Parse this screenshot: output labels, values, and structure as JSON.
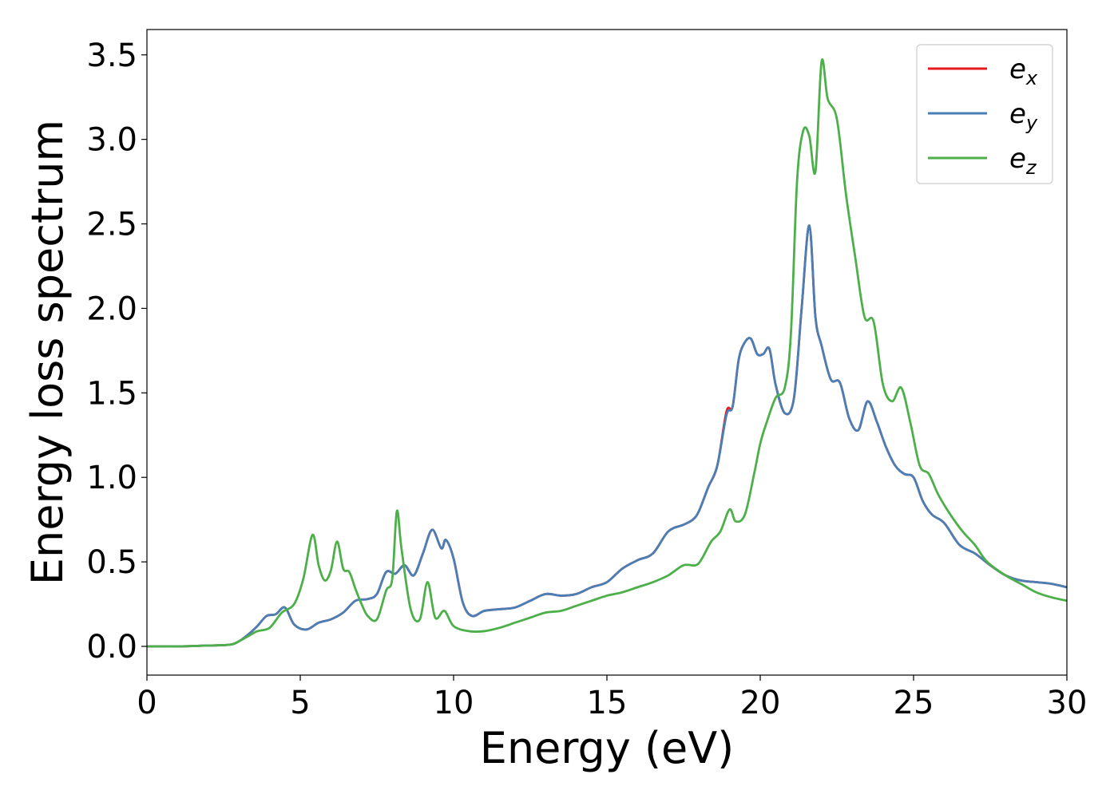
{
  "chart_data": {
    "type": "line",
    "title": "",
    "xlabel": "Energy (eV)",
    "ylabel": "Energy loss spectrum",
    "xlim": [
      0,
      30
    ],
    "ylim": [
      -0.17,
      3.65
    ],
    "xticks": [
      0,
      5,
      10,
      15,
      20,
      25,
      30
    ],
    "xtick_labels": [
      "0",
      "5",
      "10",
      "15",
      "20",
      "25",
      "30"
    ],
    "yticks": [
      0.0,
      0.5,
      1.0,
      1.5,
      2.0,
      2.5,
      3.0,
      3.5
    ],
    "ytick_labels": [
      "0.0",
      "0.5",
      "1.0",
      "1.5",
      "2.0",
      "2.5",
      "3.0",
      "3.5"
    ],
    "grid": false,
    "legend_position": "top-right",
    "series": [
      {
        "name": "e_x",
        "label_base": "e",
        "label_sub": "x",
        "color": "#e41a1c",
        "x": [
          0,
          1,
          2,
          2.7,
          3.0,
          3.3,
          3.6,
          3.9,
          4.2,
          4.5,
          4.8,
          5.2,
          5.6,
          6.0,
          6.4,
          6.8,
          7.2,
          7.5,
          7.8,
          8.1,
          8.4,
          8.7,
          9.0,
          9.3,
          9.6,
          9.75,
          10.0,
          10.3,
          10.6,
          11.0,
          11.5,
          12.0,
          12.5,
          13.0,
          13.5,
          14.0,
          14.5,
          15.0,
          15.5,
          16.0,
          16.5,
          17.0,
          17.5,
          17.8,
          18.0,
          18.3,
          18.6,
          18.9,
          19.1,
          19.3,
          19.5,
          19.7,
          19.9,
          20.1,
          20.3,
          20.5,
          20.8,
          21.1,
          21.35,
          21.6,
          21.8,
          22.0,
          22.3,
          22.6,
          22.9,
          23.2,
          23.5,
          23.8,
          24.1,
          24.4,
          24.7,
          25.0,
          25.3,
          25.6,
          26.0,
          26.5,
          27.0,
          27.5,
          28.0,
          28.5,
          29.0,
          29.5,
          30.0
        ],
        "y": [
          0.0,
          0.0,
          0.005,
          0.01,
          0.03,
          0.07,
          0.12,
          0.18,
          0.19,
          0.23,
          0.13,
          0.1,
          0.14,
          0.16,
          0.2,
          0.27,
          0.28,
          0.31,
          0.44,
          0.43,
          0.48,
          0.42,
          0.55,
          0.69,
          0.58,
          0.63,
          0.52,
          0.26,
          0.18,
          0.21,
          0.22,
          0.23,
          0.27,
          0.31,
          0.3,
          0.31,
          0.35,
          0.38,
          0.46,
          0.51,
          0.55,
          0.68,
          0.72,
          0.75,
          0.8,
          0.94,
          1.07,
          1.39,
          1.42,
          1.7,
          1.8,
          1.82,
          1.73,
          1.73,
          1.76,
          1.55,
          1.38,
          1.47,
          2.0,
          2.49,
          1.95,
          1.78,
          1.58,
          1.56,
          1.35,
          1.28,
          1.45,
          1.33,
          1.18,
          1.07,
          1.02,
          1.0,
          0.86,
          0.78,
          0.73,
          0.6,
          0.55,
          0.48,
          0.42,
          0.39,
          0.38,
          0.37,
          0.35
        ]
      },
      {
        "name": "e_y",
        "label_base": "e",
        "label_sub": "y",
        "color": "#4a7fb5",
        "x": [
          0,
          1,
          2,
          2.7,
          3.0,
          3.3,
          3.6,
          3.9,
          4.2,
          4.5,
          4.8,
          5.2,
          5.6,
          6.0,
          6.4,
          6.8,
          7.2,
          7.5,
          7.8,
          8.1,
          8.4,
          8.7,
          9.0,
          9.3,
          9.6,
          9.75,
          10.0,
          10.3,
          10.6,
          11.0,
          11.5,
          12.0,
          12.5,
          13.0,
          13.5,
          14.0,
          14.5,
          15.0,
          15.5,
          16.0,
          16.5,
          17.0,
          17.5,
          17.8,
          18.0,
          18.3,
          18.6,
          18.9,
          19.1,
          19.3,
          19.5,
          19.7,
          19.9,
          20.1,
          20.3,
          20.5,
          20.8,
          21.1,
          21.35,
          21.6,
          21.8,
          22.0,
          22.3,
          22.6,
          22.9,
          23.2,
          23.5,
          23.8,
          24.1,
          24.4,
          24.7,
          25.0,
          25.3,
          25.6,
          26.0,
          26.5,
          27.0,
          27.5,
          28.0,
          28.5,
          29.0,
          29.5,
          30.0
        ],
        "y": [
          0.0,
          0.0,
          0.005,
          0.01,
          0.03,
          0.07,
          0.12,
          0.18,
          0.19,
          0.23,
          0.13,
          0.1,
          0.14,
          0.16,
          0.2,
          0.27,
          0.28,
          0.31,
          0.44,
          0.43,
          0.48,
          0.42,
          0.55,
          0.69,
          0.58,
          0.63,
          0.52,
          0.26,
          0.18,
          0.21,
          0.22,
          0.23,
          0.27,
          0.31,
          0.3,
          0.31,
          0.35,
          0.38,
          0.46,
          0.51,
          0.55,
          0.68,
          0.72,
          0.75,
          0.8,
          0.94,
          1.07,
          1.37,
          1.42,
          1.7,
          1.8,
          1.82,
          1.73,
          1.73,
          1.76,
          1.55,
          1.38,
          1.47,
          2.0,
          2.49,
          1.95,
          1.78,
          1.58,
          1.56,
          1.35,
          1.28,
          1.45,
          1.33,
          1.18,
          1.07,
          1.02,
          1.0,
          0.86,
          0.78,
          0.73,
          0.6,
          0.55,
          0.48,
          0.42,
          0.39,
          0.38,
          0.37,
          0.35
        ]
      },
      {
        "name": "e_z",
        "label_base": "e",
        "label_sub": "z",
        "color": "#4daf4a",
        "x": [
          0,
          1,
          2,
          2.7,
          3.0,
          3.3,
          3.6,
          4.0,
          4.4,
          4.8,
          5.1,
          5.4,
          5.6,
          5.8,
          6.0,
          6.2,
          6.4,
          6.6,
          6.8,
          7.0,
          7.2,
          7.5,
          7.8,
          8.0,
          8.15,
          8.3,
          8.6,
          8.9,
          9.15,
          9.4,
          9.7,
          10.0,
          10.5,
          11.0,
          11.5,
          12.0,
          12.5,
          13.0,
          13.5,
          14.0,
          14.5,
          15.0,
          15.5,
          16.0,
          16.5,
          17.0,
          17.5,
          17.9,
          18.1,
          18.4,
          18.7,
          19.0,
          19.2,
          19.5,
          19.8,
          20.0,
          20.2,
          20.5,
          20.8,
          21.0,
          21.2,
          21.4,
          21.6,
          21.8,
          22.0,
          22.2,
          22.5,
          22.8,
          23.1,
          23.4,
          23.7,
          24.0,
          24.3,
          24.6,
          24.9,
          25.2,
          25.5,
          25.8,
          26.2,
          26.6,
          27.0,
          27.4,
          28.0,
          28.5,
          29.0,
          29.5,
          30.0
        ],
        "y": [
          0.0,
          0.0,
          0.005,
          0.01,
          0.03,
          0.06,
          0.09,
          0.11,
          0.2,
          0.25,
          0.4,
          0.66,
          0.48,
          0.39,
          0.45,
          0.62,
          0.46,
          0.44,
          0.34,
          0.25,
          0.18,
          0.16,
          0.33,
          0.4,
          0.8,
          0.58,
          0.22,
          0.16,
          0.38,
          0.17,
          0.21,
          0.12,
          0.09,
          0.09,
          0.11,
          0.14,
          0.17,
          0.2,
          0.21,
          0.24,
          0.27,
          0.3,
          0.32,
          0.35,
          0.38,
          0.42,
          0.48,
          0.48,
          0.52,
          0.62,
          0.68,
          0.81,
          0.74,
          0.78,
          1.02,
          1.2,
          1.32,
          1.47,
          1.53,
          1.85,
          2.75,
          3.05,
          3.02,
          2.81,
          3.46,
          3.24,
          3.12,
          2.67,
          2.3,
          1.95,
          1.92,
          1.55,
          1.45,
          1.53,
          1.32,
          1.07,
          1.02,
          0.9,
          0.78,
          0.68,
          0.6,
          0.5,
          0.42,
          0.37,
          0.32,
          0.29,
          0.27
        ]
      }
    ]
  }
}
